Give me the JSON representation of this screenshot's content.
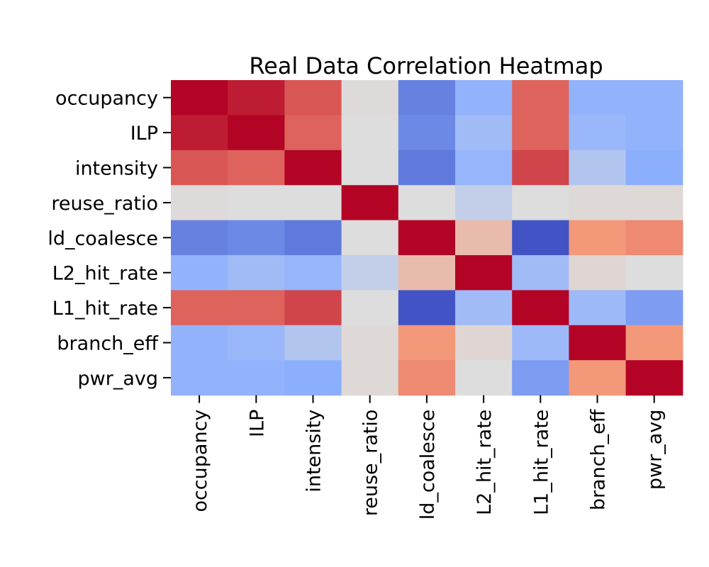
{
  "chart_data": {
    "type": "heatmap",
    "title": "Real Data Correlation Heatmap",
    "xlabel": "",
    "ylabel": "",
    "x_categories": [
      "occupancy",
      "ILP",
      "intensity",
      "reuse_ratio",
      "ld_coalesce",
      "L2_hit_rate",
      "L1_hit_rate",
      "branch_eff",
      "pwr_avg"
    ],
    "y_categories": [
      "occupancy",
      "ILP",
      "intensity",
      "reuse_ratio",
      "ld_coalesce",
      "L2_hit_rate",
      "L1_hit_rate",
      "branch_eff",
      "pwr_avg"
    ],
    "values": [
      [
        1.0,
        0.92,
        0.72,
        0.02,
        -0.55,
        -0.35,
        0.68,
        -0.35,
        -0.35
      ],
      [
        0.92,
        1.0,
        0.68,
        0.0,
        -0.52,
        -0.28,
        0.68,
        -0.32,
        -0.35
      ],
      [
        0.72,
        0.68,
        1.0,
        0.0,
        -0.58,
        -0.33,
        0.78,
        -0.2,
        -0.38
      ],
      [
        0.02,
        0.0,
        0.0,
        1.0,
        0.0,
        -0.12,
        0.0,
        0.03,
        0.03
      ],
      [
        -0.55,
        -0.52,
        -0.58,
        0.0,
        1.0,
        0.25,
        -0.72,
        0.5,
        0.55
      ],
      [
        -0.35,
        -0.28,
        -0.33,
        -0.12,
        0.25,
        1.0,
        -0.28,
        0.05,
        0.0
      ],
      [
        0.68,
        0.68,
        0.78,
        0.0,
        -0.72,
        -0.28,
        1.0,
        -0.3,
        -0.45
      ],
      [
        -0.35,
        -0.32,
        -0.2,
        0.03,
        0.5,
        0.05,
        -0.3,
        1.0,
        0.5
      ],
      [
        -0.35,
        -0.35,
        -0.38,
        0.03,
        0.55,
        0.0,
        -0.45,
        0.5,
        1.0
      ]
    ],
    "vmin": -0.75,
    "vmax": 1.0,
    "colormap": "coolwarm",
    "colorbar": false,
    "grid": false
  }
}
